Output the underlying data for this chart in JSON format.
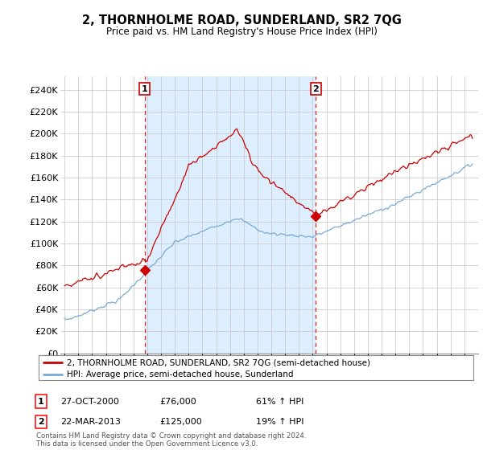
{
  "title": "2, THORNHOLME ROAD, SUNDERLAND, SR2 7QG",
  "subtitle": "Price paid vs. HM Land Registry's House Price Index (HPI)",
  "ylabel_ticks": [
    0,
    20000,
    40000,
    60000,
    80000,
    100000,
    120000,
    140000,
    160000,
    180000,
    200000,
    220000,
    240000
  ],
  "ylabel_labels": [
    "£0",
    "£20K",
    "£40K",
    "£60K",
    "£80K",
    "£100K",
    "£120K",
    "£140K",
    "£160K",
    "£180K",
    "£200K",
    "£220K",
    "£240K"
  ],
  "xlim": [
    1994.7,
    2025.0
  ],
  "ylim": [
    0,
    252000
  ],
  "property_color": "#cc0000",
  "hpi_color": "#7aaad4",
  "vline_color": "#cc0000",
  "shade_color": "#ddeeff",
  "sale1_year": 2000.82,
  "sale1_price": 76000,
  "sale1_label": "1",
  "sale1_date": "27-OCT-2000",
  "sale1_pct": "61%",
  "sale2_year": 2013.22,
  "sale2_price": 125000,
  "sale2_label": "2",
  "sale2_date": "22-MAR-2013",
  "sale2_pct": "19%",
  "legend_property": "2, THORNHOLME ROAD, SUNDERLAND, SR2 7QG (semi-detached house)",
  "legend_hpi": "HPI: Average price, semi-detached house, Sunderland",
  "footer": "Contains HM Land Registry data © Crown copyright and database right 2024.\nThis data is licensed under the Open Government Licence v3.0.",
  "background_color": "#ffffff",
  "grid_color": "#cccccc"
}
